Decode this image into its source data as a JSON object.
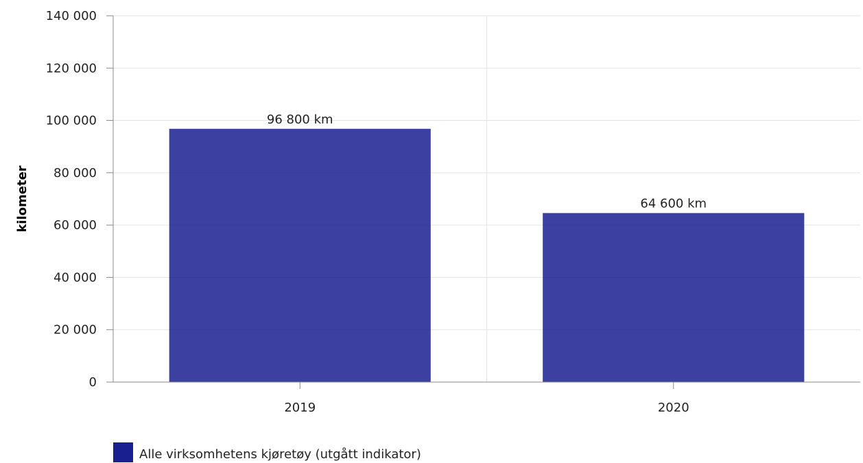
{
  "chart_data": {
    "type": "bar",
    "categories": [
      "2019",
      "2020"
    ],
    "series": [
      {
        "name": "Alle virksomhetens kjøretøy (utgått indikator)",
        "values": [
          96800,
          64600
        ],
        "data_labels": [
          "96 800 km",
          "64 600 km"
        ],
        "color": "#1a1f8f"
      }
    ],
    "ylabel": "kilometer",
    "xlabel": "",
    "ylim": [
      0,
      140000
    ],
    "yticks": [
      0,
      20000,
      40000,
      60000,
      80000,
      100000,
      120000,
      140000
    ],
    "ytick_labels": [
      "0",
      "20 000",
      "40 000",
      "60 000",
      "80 000",
      "100 000",
      "120 000",
      "140 000"
    ],
    "grid": true,
    "legend_position": "bottom-left"
  }
}
